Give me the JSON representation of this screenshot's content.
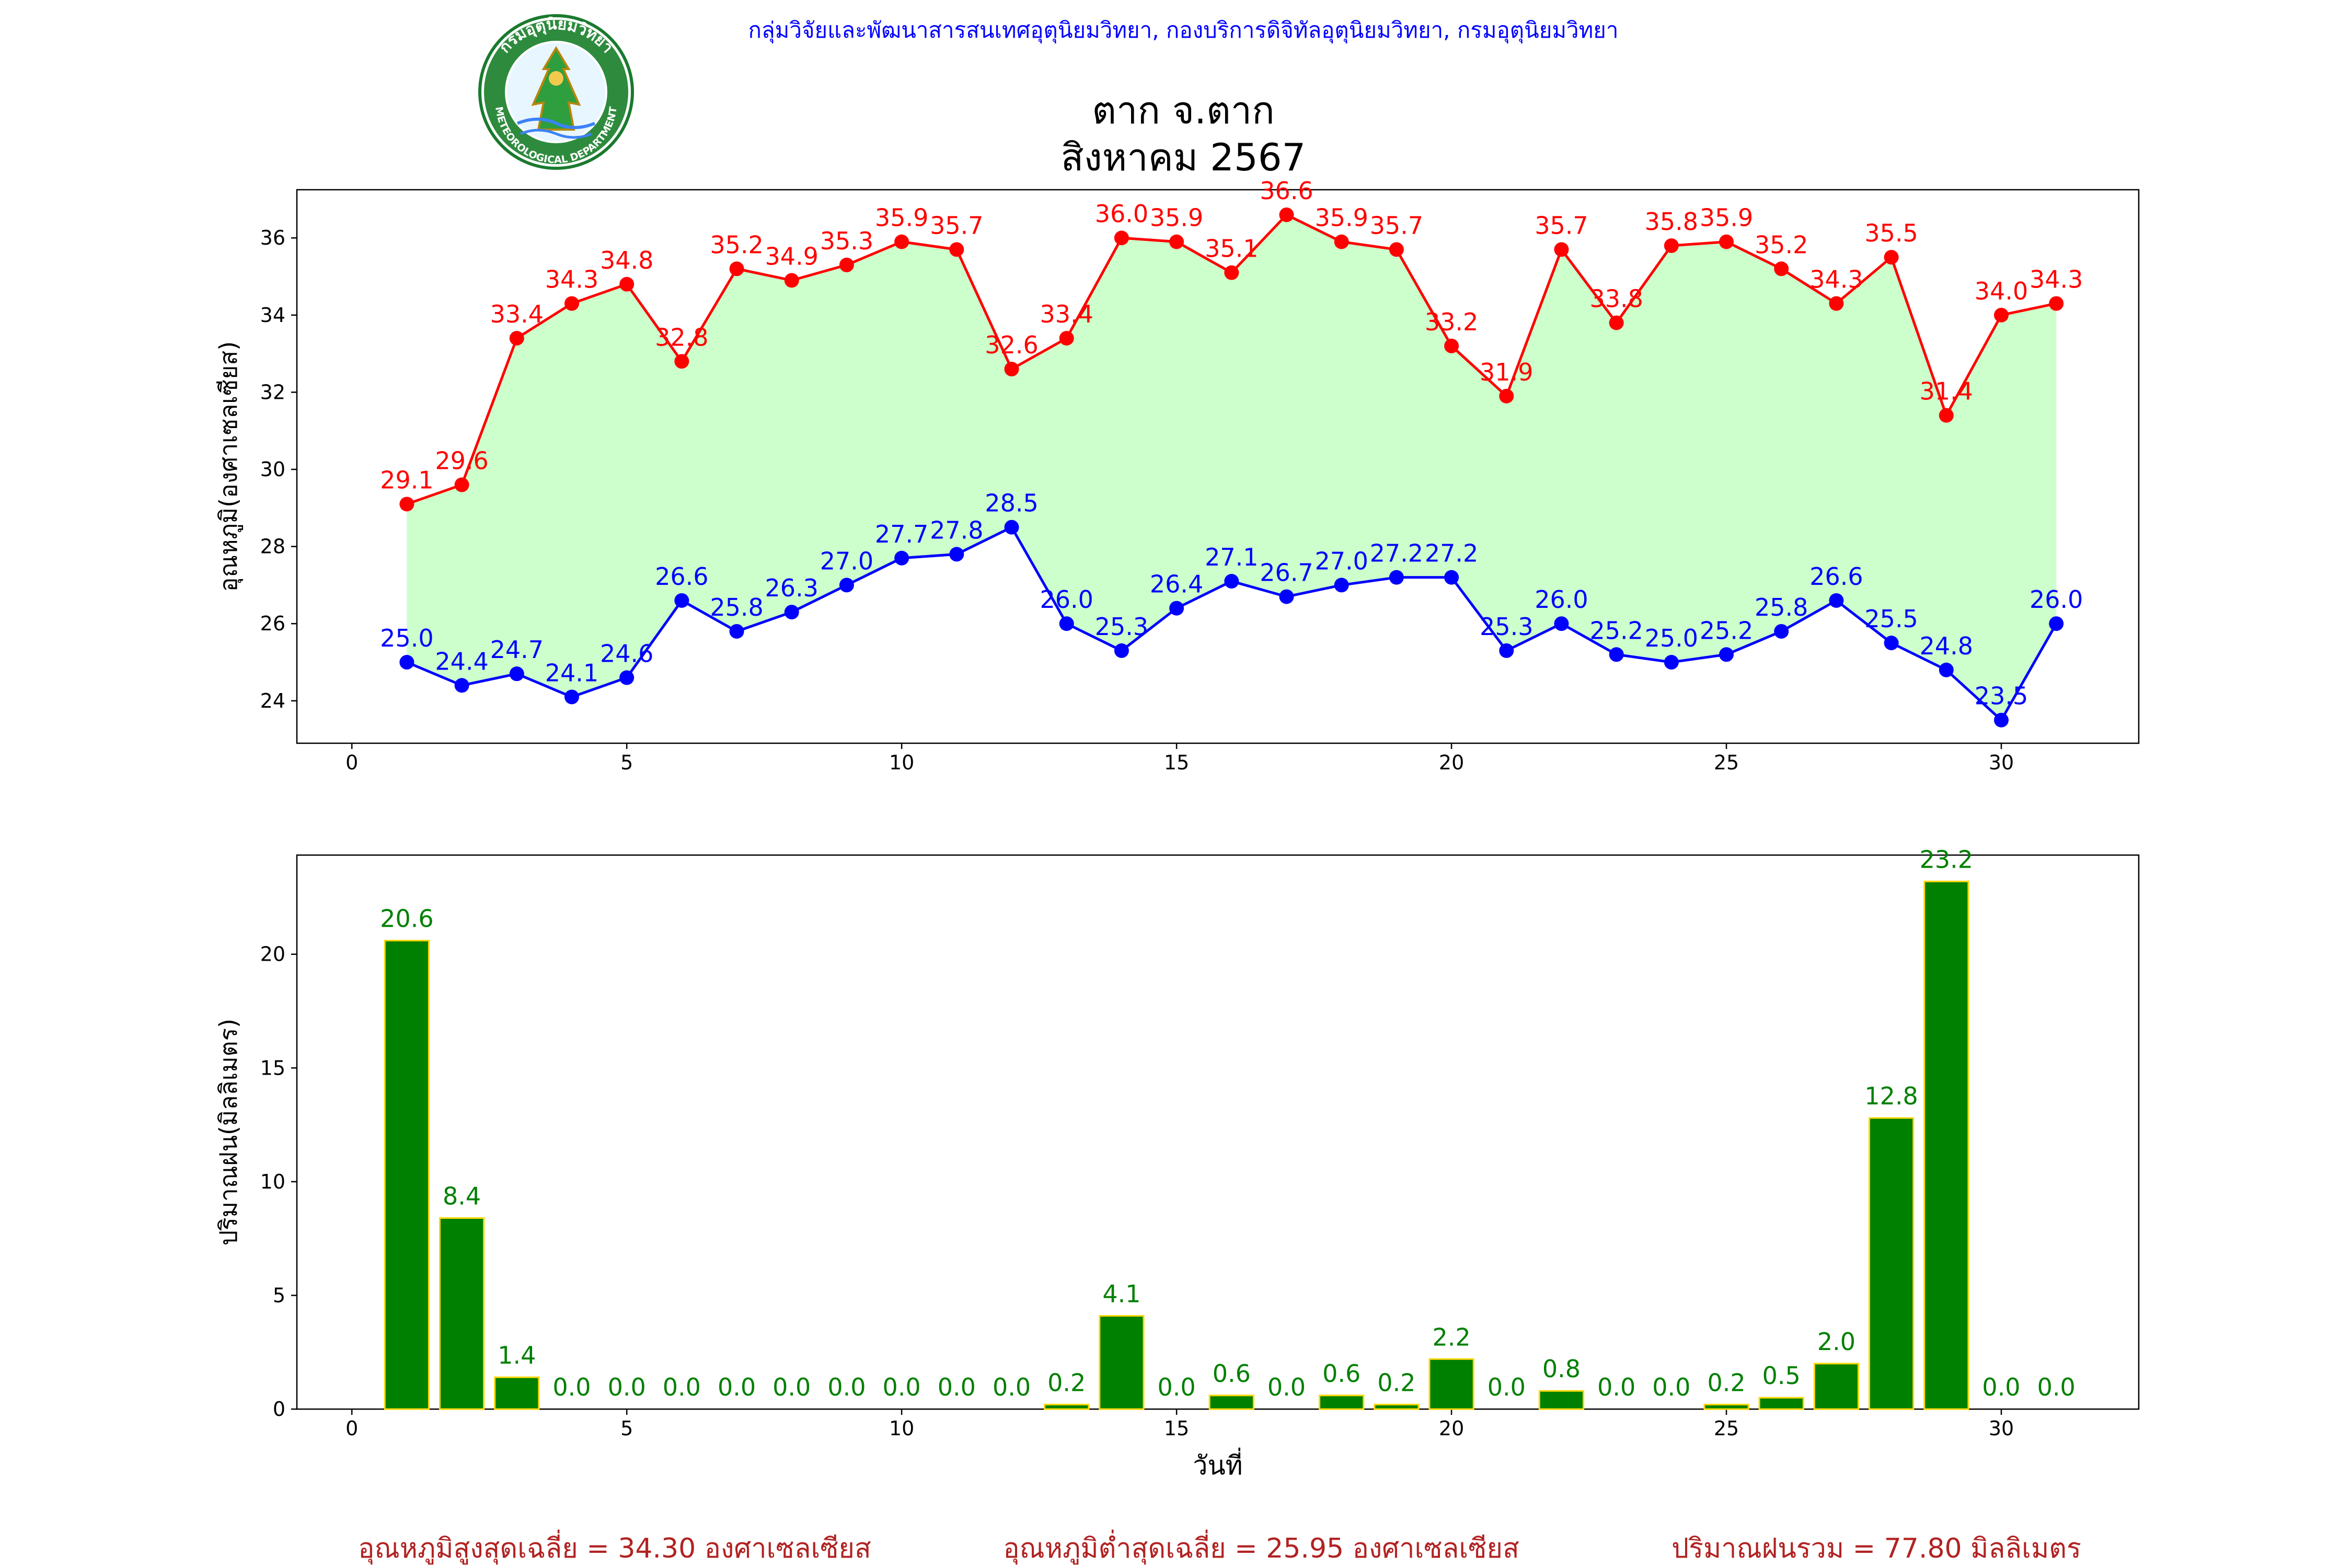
{
  "header": {
    "department": "กลุ่มวิจัยและพัฒนาสารสนเทศอุตุนิยมวิทยา, กองบริการดิจิทัลอุตุนิยมวิทยา, กรมอุตุนิยมวิทยา",
    "station": "ตาก จ.ตาก",
    "period": "สิงหาคม 2567"
  },
  "logo": {
    "top_text": "กรมอุตุนิยมวิทยา",
    "bottom_text": "METEOROLOGICAL DEPARTMENT"
  },
  "colors": {
    "header_text": "#0000ff",
    "max_series": "#ff0000",
    "min_series": "#0000ff",
    "band_fill": "#ccffcc",
    "rain_bar": "#008000",
    "rain_bar_edge": "#ffd700",
    "summary_text": "#b22222"
  },
  "chart_data": [
    {
      "type": "line",
      "ylabel": "อุณหภูมิ(องศาเซลเซียส)",
      "xlabel": "",
      "xlim": [
        -1,
        32.5
      ],
      "ylim": [
        22.9,
        37.25
      ],
      "xticks": [
        0,
        5,
        10,
        15,
        20,
        25,
        30
      ],
      "yticks": [
        24,
        26,
        28,
        30,
        32,
        34,
        36
      ],
      "grid": false,
      "fill_between_series": true,
      "x": [
        1,
        2,
        3,
        4,
        5,
        6,
        7,
        8,
        9,
        10,
        11,
        12,
        13,
        14,
        15,
        16,
        17,
        18,
        19,
        20,
        21,
        22,
        23,
        24,
        25,
        26,
        27,
        28,
        29,
        30,
        31
      ],
      "series": [
        {
          "key": "max",
          "values": [
            29.1,
            29.6,
            33.4,
            34.3,
            34.8,
            32.8,
            35.2,
            34.9,
            35.3,
            35.9,
            35.7,
            32.6,
            33.4,
            36.0,
            35.9,
            35.1,
            36.6,
            35.9,
            35.7,
            33.2,
            31.9,
            35.7,
            33.8,
            35.8,
            35.9,
            35.2,
            34.3,
            35.5,
            31.4,
            34.0,
            34.3
          ],
          "labels": [
            "29.1",
            "29.6",
            "33.4",
            "34.3",
            "34.8",
            "32.8",
            "35.2",
            "34.9",
            "35.3",
            "35.9",
            "35.7",
            "32.6",
            "33.4",
            "36.0",
            "35.9",
            "35.1",
            "36.6",
            "35.9",
            "35.7",
            "33.2",
            "31.9",
            "35.7",
            "33.8",
            "35.8",
            "35.9",
            "35.2",
            "34.3",
            "35.5",
            "31.4",
            "34.0",
            "34.3"
          ]
        },
        {
          "key": "min",
          "values": [
            25.0,
            24.4,
            24.7,
            24.1,
            24.6,
            26.6,
            25.8,
            26.3,
            27.0,
            27.7,
            27.8,
            28.5,
            26.0,
            25.3,
            26.4,
            27.1,
            26.7,
            27.0,
            27.2,
            27.2,
            25.3,
            26.0,
            25.2,
            25.0,
            25.2,
            25.8,
            26.6,
            25.5,
            24.8,
            23.5,
            26.0
          ],
          "labels": [
            "25.0",
            "24.4",
            "24.7",
            "24.1",
            "24.6",
            "26.6",
            "25.8",
            "26.3",
            "27.0",
            "27.7",
            "27.8",
            "28.5",
            "26.0",
            "25.3",
            "26.4",
            "27.1",
            "26.7",
            "27.0",
            "27.2",
            "27.2",
            "25.3",
            "26.0",
            "25.2",
            "25.0",
            "25.2",
            "25.8",
            "26.6",
            "25.5",
            "24.8",
            "23.5",
            "26.0"
          ]
        }
      ]
    },
    {
      "type": "bar",
      "ylabel": "ปริมาณฝน(มิลลิเมตร)",
      "xlabel": "วันที่",
      "xlim": [
        -1,
        32.5
      ],
      "ylim": [
        0,
        24.36
      ],
      "xticks": [
        0,
        5,
        10,
        15,
        20,
        25,
        30
      ],
      "yticks": [
        0,
        5,
        10,
        15,
        20
      ],
      "grid": false,
      "x": [
        1,
        2,
        3,
        4,
        5,
        6,
        7,
        8,
        9,
        10,
        11,
        12,
        13,
        14,
        15,
        16,
        17,
        18,
        19,
        20,
        21,
        22,
        23,
        24,
        25,
        26,
        27,
        28,
        29,
        30,
        31
      ],
      "values": [
        20.6,
        8.4,
        1.4,
        0.0,
        0.0,
        0.0,
        0.0,
        0.0,
        0.0,
        0.0,
        0.0,
        0.0,
        0.2,
        4.1,
        0.0,
        0.6,
        0.0,
        0.6,
        0.2,
        2.2,
        0.0,
        0.8,
        0.0,
        0.0,
        0.2,
        0.5,
        2.0,
        12.8,
        23.2,
        0.0,
        0.0
      ],
      "labels": [
        "20.6",
        "8.4",
        "1.4",
        "0.0",
        "0.0",
        "0.0",
        "0.0",
        "0.0",
        "0.0",
        "0.0",
        "0.0",
        "0.0",
        "0.2",
        "4.1",
        "0.0",
        "0.6",
        "0.0",
        "0.6",
        "0.2",
        "2.2",
        "0.0",
        "0.8",
        "0.0",
        "0.0",
        "0.2",
        "0.5",
        "2.0",
        "12.8",
        "23.2",
        "0.0",
        "0.0"
      ]
    }
  ],
  "summary": {
    "avg_max": "อุณหภูมิสูงสุดเฉลี่ย = 34.30 องศาเซลเซียส",
    "avg_min": "อุณหภูมิต่ำสุดเฉลี่ย = 25.95 องศาเซลเซียส",
    "total_rain": "ปริมาณฝนรวม = 77.80 มิลลิเมตร"
  }
}
